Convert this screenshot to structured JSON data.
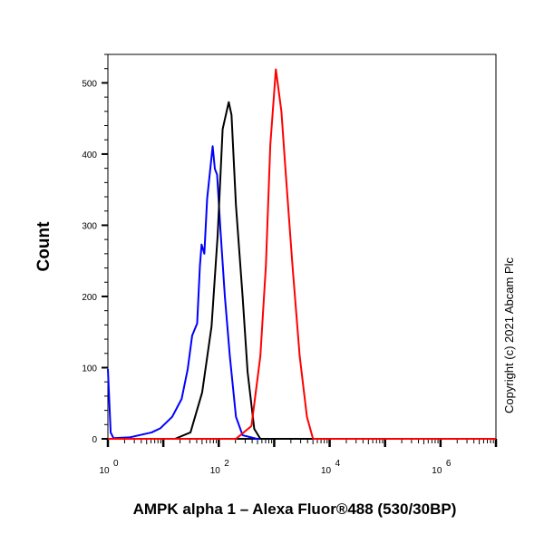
{
  "chart_data": {
    "type": "line",
    "title": "",
    "xlabel": "AMPK alpha 1 – Alexa Fluor®488 (530/30BP)",
    "ylabel": "Count",
    "x_scale": "log",
    "xlim": [
      1,
      10000000
    ],
    "ylim": [
      0,
      540
    ],
    "x_ticks": [
      {
        "base": "10",
        "exp": "0",
        "value": 1
      },
      {
        "base": "10",
        "exp": "2",
        "value": 100
      },
      {
        "base": "10",
        "exp": "4",
        "value": 10000
      },
      {
        "base": "10",
        "exp": "6",
        "value": 1000000
      }
    ],
    "y_ticks": [
      0,
      100,
      200,
      300,
      400,
      500
    ],
    "grid": false,
    "annotation": "Copyright (c) 2021 Abcam Plc",
    "series": [
      {
        "color": "#0000ff",
        "log10_x": [
          -0.02,
          0.05,
          0.1,
          0.39,
          0.79,
          0.95,
          1.16,
          1.33,
          1.44,
          1.52,
          1.61,
          1.66,
          1.69,
          1.74,
          1.79,
          1.89,
          1.93,
          1.97,
          2.03,
          2.11,
          2.2,
          2.31,
          2.43,
          2.69,
          7
        ],
        "y": [
          98,
          9,
          1,
          2,
          9,
          15,
          31,
          56,
          98,
          145,
          162,
          243,
          273,
          260,
          337,
          411,
          379,
          371,
          294,
          200,
          116,
          31,
          5,
          0,
          0
        ]
      },
      {
        "color": "#000000",
        "log10_x": [
          0,
          1.21,
          1.49,
          1.7,
          1.87,
          1.98,
          2.07,
          2.18,
          2.23,
          2.31,
          2.43,
          2.52,
          2.64,
          2.75,
          7
        ],
        "y": [
          0,
          0,
          9,
          65,
          158,
          286,
          435,
          473,
          455,
          328,
          200,
          94,
          14,
          0,
          0
        ]
      },
      {
        "color": "#ff0000",
        "log10_x": [
          0,
          2.31,
          2.59,
          2.75,
          2.85,
          2.93,
          3.03,
          3.13,
          3.21,
          3.33,
          3.46,
          3.59,
          3.7,
          7
        ],
        "y": [
          0,
          0,
          18,
          116,
          243,
          413,
          519,
          460,
          371,
          243,
          116,
          31,
          0,
          0
        ]
      }
    ]
  }
}
